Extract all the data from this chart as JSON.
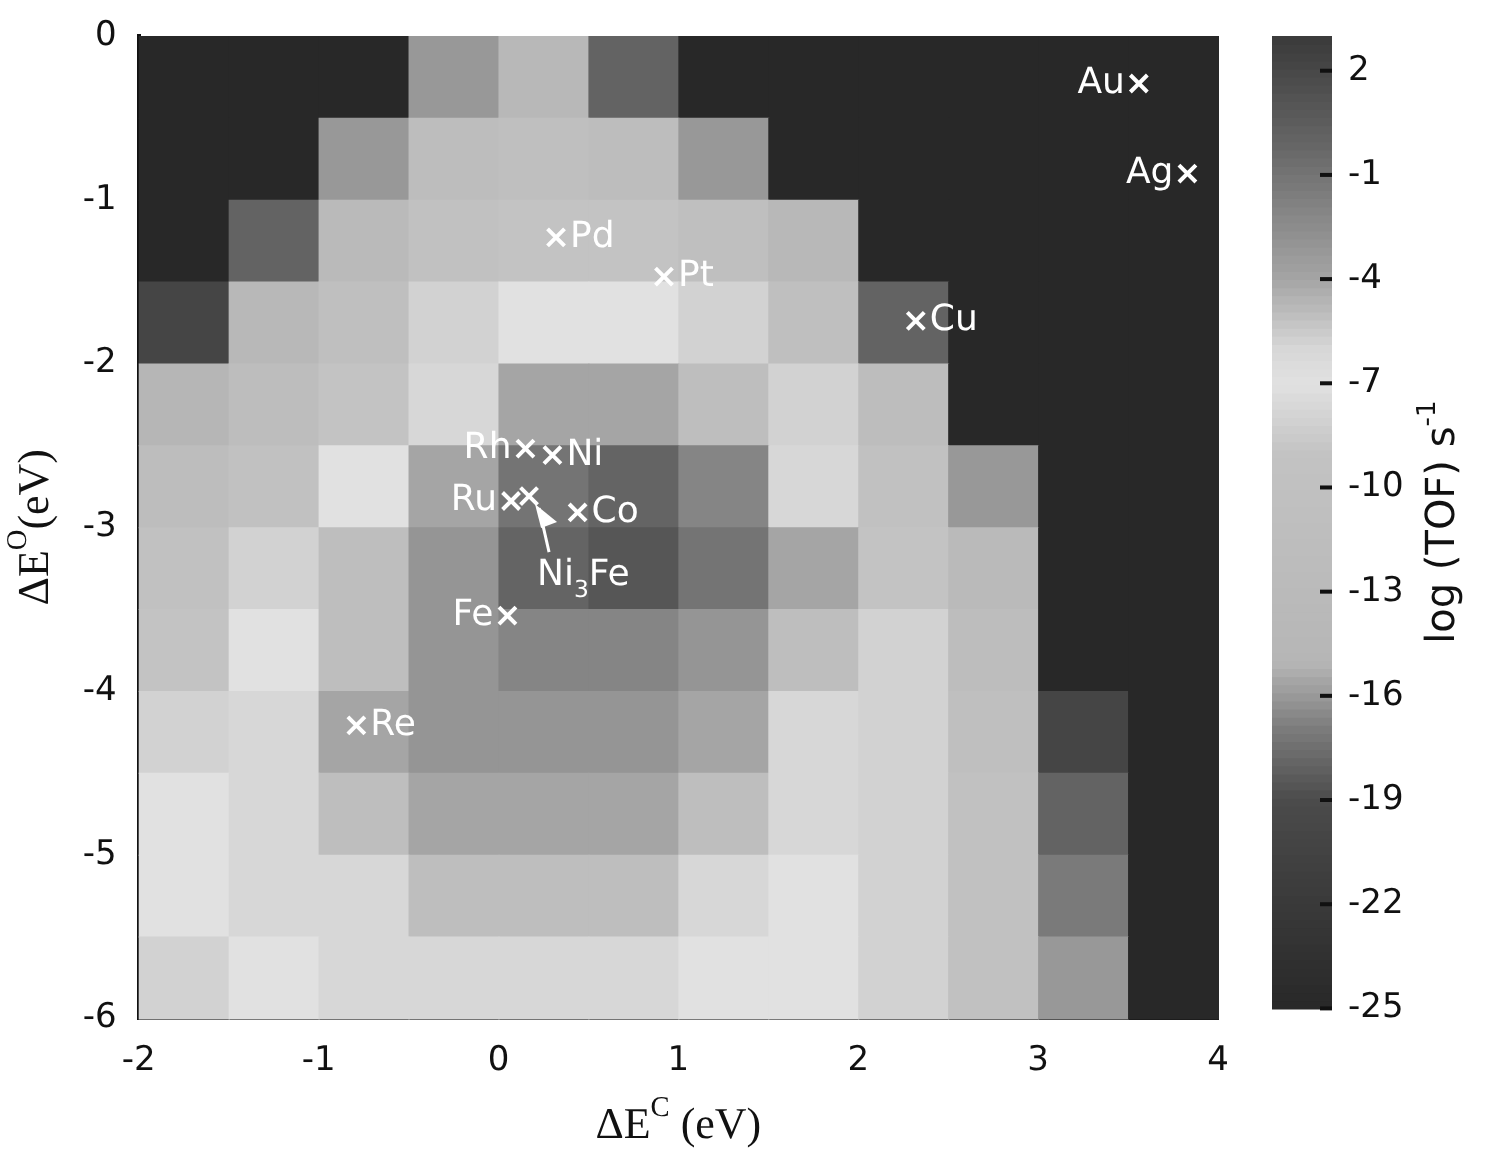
{
  "chart_data": {
    "type": "heatmap",
    "xlabel": "ΔE$^{C}$ (eV)",
    "ylabel": "ΔE$^{O}$(eV)",
    "clabel": "log (TOF) s$^{-1}$",
    "x": [
      -1.75,
      -1.25,
      -0.75,
      -0.25,
      0.25,
      0.75,
      1.25,
      1.75,
      2.25,
      2.75,
      3.25,
      3.75
    ],
    "y": [
      -0.25,
      -0.75,
      -1.25,
      -1.75,
      -2.25,
      -2.75,
      -3.25,
      -3.75,
      -4.25,
      -4.75,
      -5.25,
      -5.75
    ],
    "xlim": [
      -2,
      4
    ],
    "xticks": [
      -2,
      -1,
      0,
      1,
      2,
      3,
      4
    ],
    "ylim": [
      -6,
      0
    ],
    "yticks": [
      -6,
      -5,
      -4,
      -3,
      -2,
      -1,
      0
    ],
    "clim": [
      -25,
      3
    ],
    "cticks": [
      2,
      -1,
      -4,
      -7,
      -10,
      -13,
      -16,
      -19,
      -22,
      -25
    ],
    "cells": [
      [
        -25,
        -25,
        -25,
        -16,
        -14,
        -18,
        -25,
        -25,
        -25,
        -25,
        -25,
        -25
      ],
      [
        -25,
        -25,
        -16,
        -12,
        -11,
        -12,
        -16,
        -25,
        -25,
        -25,
        -25,
        -25
      ],
      [
        -25,
        -18,
        -13,
        -10,
        -9,
        -9,
        -11,
        -14,
        -25,
        -25,
        -25,
        -25
      ],
      [
        -20,
        -14,
        -11,
        -8,
        -7,
        -7,
        -8,
        -11,
        -18,
        -25,
        -25,
        -25
      ],
      [
        -15,
        -12,
        -9,
        -6,
        -4,
        -4,
        -5,
        -8,
        -12,
        -25,
        -25,
        -25
      ],
      [
        -12,
        -10,
        -7,
        -4,
        -1,
        0,
        -2,
        -6,
        -10,
        -16,
        -25,
        -25
      ],
      [
        -10,
        -8,
        -5,
        -3,
        0,
        1,
        -1,
        -4,
        -9,
        -13,
        -25,
        -25
      ],
      [
        -9,
        -7,
        -5,
        -3,
        -2,
        -2,
        -3,
        -5,
        -8,
        -12,
        -25,
        -25
      ],
      [
        -8,
        -6,
        -4,
        -3,
        -3,
        -3,
        -4,
        -6,
        -8,
        -11,
        -20,
        -25
      ],
      [
        -7,
        -6,
        -5,
        -4,
        -4,
        -4,
        -5,
        -6,
        -8,
        -10,
        -18,
        -25
      ],
      [
        -7,
        -6,
        -6,
        -5,
        -5,
        -5,
        -6,
        -7,
        -8,
        -10,
        -17,
        -25
      ],
      [
        -8,
        -7,
        -6,
        -6,
        -6,
        -6,
        -7,
        -7,
        -8,
        -10,
        -16,
        -25
      ]
    ],
    "series": [
      {
        "type": "scatter",
        "x": [
          3.56,
          3.83,
          0.32,
          0.92,
          2.32,
          0.15,
          0.3,
          0.07,
          0.44,
          0.17,
          0.05,
          -0.79
        ],
        "values": [
          -0.29,
          -0.84,
          -1.23,
          -1.47,
          -1.74,
          -2.52,
          -2.56,
          -2.84,
          -2.91,
          -2.81,
          -3.54,
          -4.21
        ],
        "color": "#ffffff"
      }
    ],
    "marker": "cross",
    "annotations": [
      {
        "text": "Au",
        "x": 3.56,
        "y": -0.29
      },
      {
        "text": "Ag",
        "x": 3.83,
        "y": -0.84
      },
      {
        "text": "Pd",
        "x": 0.32,
        "y": -1.23
      },
      {
        "text": "Pt",
        "x": 0.92,
        "y": -1.47
      },
      {
        "text": "Cu",
        "x": 2.32,
        "y": -1.74
      },
      {
        "text": "Rh",
        "x": 0.15,
        "y": -2.52
      },
      {
        "text": "Ni",
        "x": 0.3,
        "y": -2.56
      },
      {
        "text": "Ru",
        "x": 0.07,
        "y": -2.84
      },
      {
        "text": "Co",
        "x": 0.44,
        "y": -2.91
      },
      {
        "text": "Ni$_{3}$Fe",
        "x": 0.17,
        "y": -2.81
      },
      {
        "text": "Fe",
        "x": 0.05,
        "y": -3.54
      },
      {
        "text": "Re",
        "x": -0.79,
        "y": -4.21
      }
    ]
  }
}
